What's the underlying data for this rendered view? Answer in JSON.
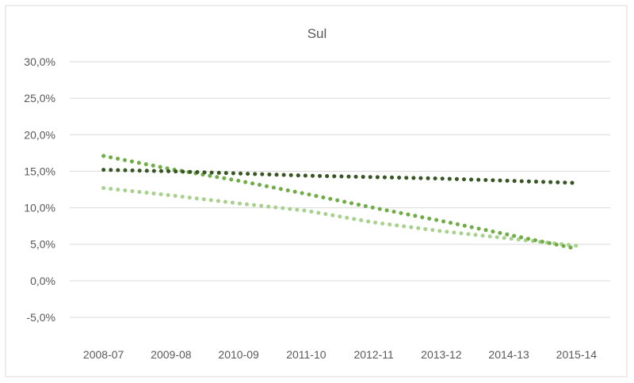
{
  "chart_data": {
    "type": "line",
    "title": "Sul",
    "categories": [
      "2008-07",
      "2009-08",
      "2010-09",
      "2011-10",
      "2012-11",
      "2013-12",
      "2014-13",
      "2015-14"
    ],
    "ylim": [
      -5,
      30
    ],
    "yticks": [
      -5,
      0,
      5,
      10,
      15,
      20,
      25,
      30
    ],
    "ytick_labels": [
      "-5,0%",
      "0,0%",
      "5,0%",
      "10,0%",
      "15,0%",
      "20,0%",
      "25,0%",
      "30,0%"
    ],
    "grid": true,
    "legend": "none",
    "line_style": "dotted",
    "series": [
      {
        "color": "#a9d18e",
        "values": [
          12.7,
          11.7,
          10.6,
          9.6,
          8.0,
          6.8,
          5.8,
          4.8
        ]
      },
      {
        "color": "#70ad47",
        "values": [
          17.1,
          15.3,
          13.7,
          11.9,
          10.0,
          8.2,
          6.3,
          4.4
        ]
      },
      {
        "color": "#375623",
        "values": [
          15.2,
          15.0,
          14.7,
          14.4,
          14.2,
          14.0,
          13.7,
          13.4
        ]
      }
    ]
  }
}
